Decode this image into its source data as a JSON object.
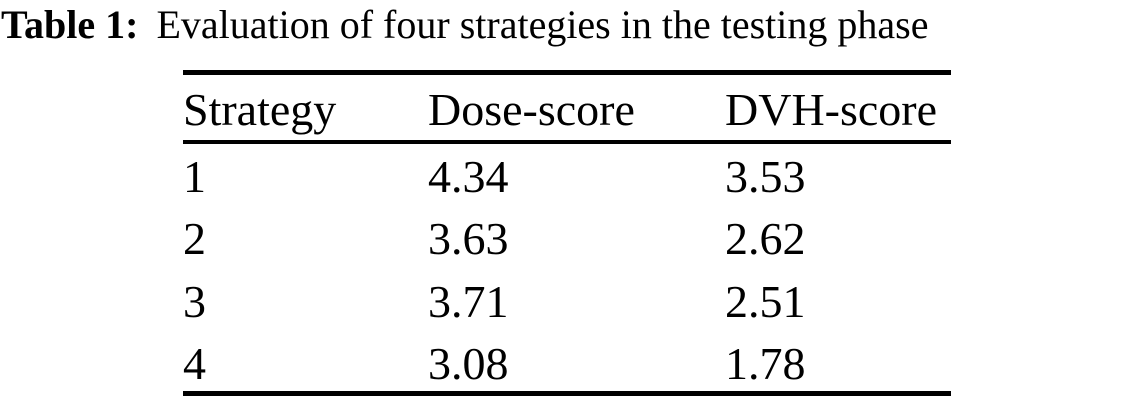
{
  "caption": {
    "label": "Table 1:",
    "text": "Evaluation of four strategies in the testing phase"
  },
  "table": {
    "columns": [
      "Strategy",
      "Dose-score",
      "DVH-score"
    ],
    "rows": [
      [
        "1",
        "4.34",
        "3.53"
      ],
      [
        "2",
        "3.63",
        "2.62"
      ],
      [
        "3",
        "3.71",
        "2.51"
      ],
      [
        "4",
        "3.08",
        "1.78"
      ]
    ]
  },
  "colors": {
    "text": "#000000",
    "background": "#ffffff",
    "rule": "#000000"
  }
}
